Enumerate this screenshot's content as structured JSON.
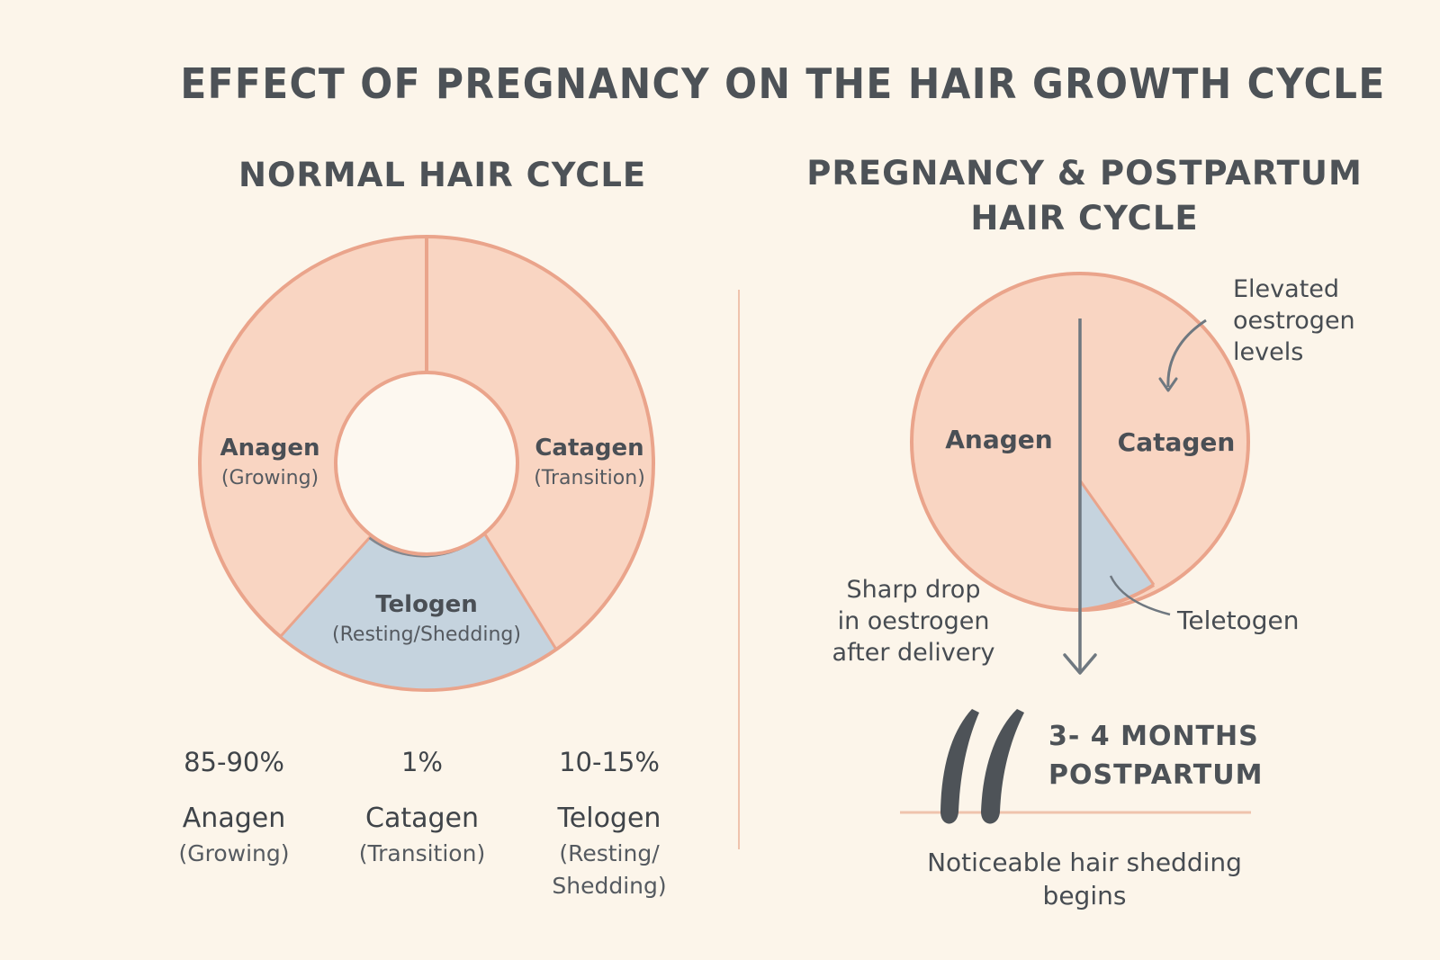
{
  "title": "EFFECT OF PREGNANCY ON THE HAIR GROWTH CYCLE",
  "normal": {
    "heading": "NORMAL HAIR CYCLE",
    "segments": [
      {
        "name": "Anagen",
        "desc": "(Growing)"
      },
      {
        "name": "Catagen",
        "desc": "(Transition)"
      },
      {
        "name": "Telogen",
        "desc": "(Resting/Shedding)"
      }
    ],
    "stats": [
      {
        "value": "85-90%",
        "name": "Anagen",
        "desc": "(Growing)"
      },
      {
        "value": "1%",
        "name": "Catagen",
        "desc": "(Transition)"
      },
      {
        "value": "10-15%",
        "name": "Telogen",
        "desc_line1": "(Resting/",
        "desc_line2": "Shedding)"
      }
    ]
  },
  "pregnancy": {
    "heading_line1": "PREGNANCY & POSTPARTUM",
    "heading_line2": "HAIR CYCLE",
    "segments": [
      {
        "name": "Anagen"
      },
      {
        "name": "Catagen"
      },
      {
        "name": "Teletogen"
      }
    ],
    "annotation_top": [
      "Elevated",
      "oestrogen",
      "levels"
    ],
    "annotation_drop": [
      "Sharp drop",
      "in oestrogen",
      "after delivery"
    ],
    "months_line1": "3- 4 MONTHS",
    "months_line2": "POSTPARTUM",
    "shedding_line1": "Noticeable hair shedding",
    "shedding_line2": "begins"
  },
  "colors": {
    "background": "#fcf5ea",
    "peach_fill": "#f9d5c2",
    "peach_stroke": "#eaa48b",
    "blue_fill": "#c5d3de",
    "arrow": "#6f7880",
    "hair": "#4e5358"
  }
}
